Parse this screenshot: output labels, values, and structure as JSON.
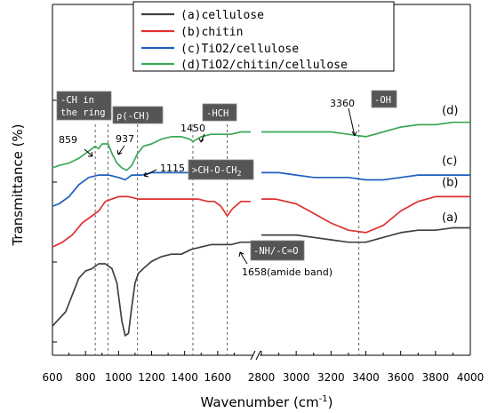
{
  "chart_data": {
    "type": "line",
    "xlabel": "Wavenumber (cm",
    "xlabel_sup": "-1",
    "xlabel_close": ")",
    "ylabel": "Transmittance (%)",
    "x_axis_break": true,
    "x_segments": [
      {
        "xlim": [
          600,
          1800
        ],
        "ticks": [
          600,
          800,
          1000,
          1200,
          1400,
          1600
        ]
      },
      {
        "xlim": [
          2800,
          4000
        ],
        "ticks": [
          2800,
          3000,
          3200,
          3400,
          3600,
          3800,
          4000
        ]
      }
    ],
    "legend": [
      {
        "label": "(a)cellulose",
        "color": "#404040"
      },
      {
        "label": "(b)chitin",
        "color": "#e03030"
      },
      {
        "label": "(c)TiO2/cellulose",
        "color": "#1f5fbf"
      },
      {
        "label": "(d)TiO2/chitin/cellulose",
        "color": "#3aa856"
      }
    ],
    "series": [
      {
        "name": "(a)cellulose",
        "color": "#404040",
        "seg1": [
          [
            600,
            0.04
          ],
          [
            640,
            0.07
          ],
          [
            680,
            0.1
          ],
          [
            720,
            0.17
          ],
          [
            760,
            0.24
          ],
          [
            800,
            0.27
          ],
          [
            840,
            0.28
          ],
          [
            880,
            0.3
          ],
          [
            920,
            0.3
          ],
          [
            960,
            0.28
          ],
          [
            990,
            0.22
          ],
          [
            1020,
            0.06
          ],
          [
            1040,
            0.0
          ],
          [
            1060,
            0.01
          ],
          [
            1080,
            0.12
          ],
          [
            1100,
            0.22
          ],
          [
            1120,
            0.26
          ],
          [
            1150,
            0.28
          ],
          [
            1200,
            0.31
          ],
          [
            1260,
            0.33
          ],
          [
            1320,
            0.34
          ],
          [
            1380,
            0.34
          ],
          [
            1440,
            0.36
          ],
          [
            1500,
            0.37
          ],
          [
            1560,
            0.38
          ],
          [
            1620,
            0.38
          ],
          [
            1680,
            0.38
          ],
          [
            1740,
            0.39
          ],
          [
            1800,
            0.39
          ]
        ],
        "seg2": [
          [
            2800,
            0.42
          ],
          [
            2900,
            0.42
          ],
          [
            3000,
            0.42
          ],
          [
            3100,
            0.41
          ],
          [
            3200,
            0.4
          ],
          [
            3300,
            0.39
          ],
          [
            3400,
            0.39
          ],
          [
            3500,
            0.41
          ],
          [
            3600,
            0.43
          ],
          [
            3700,
            0.44
          ],
          [
            3800,
            0.44
          ],
          [
            3900,
            0.45
          ],
          [
            4000,
            0.45
          ]
        ]
      },
      {
        "name": "(b)chitin",
        "color": "#e03030",
        "seg1": [
          [
            600,
            0.37
          ],
          [
            660,
            0.39
          ],
          [
            720,
            0.42
          ],
          [
            780,
            0.47
          ],
          [
            840,
            0.5
          ],
          [
            880,
            0.52
          ],
          [
            920,
            0.56
          ],
          [
            960,
            0.57
          ],
          [
            1000,
            0.58
          ],
          [
            1060,
            0.58
          ],
          [
            1120,
            0.57
          ],
          [
            1180,
            0.57
          ],
          [
            1240,
            0.57
          ],
          [
            1300,
            0.57
          ],
          [
            1360,
            0.57
          ],
          [
            1420,
            0.57
          ],
          [
            1480,
            0.57
          ],
          [
            1540,
            0.56
          ],
          [
            1580,
            0.56
          ],
          [
            1620,
            0.54
          ],
          [
            1658,
            0.5
          ],
          [
            1690,
            0.53
          ],
          [
            1740,
            0.56
          ],
          [
            1800,
            0.56
          ]
        ],
        "seg2": [
          [
            2800,
            0.57
          ],
          [
            2880,
            0.57
          ],
          [
            3000,
            0.55
          ],
          [
            3100,
            0.51
          ],
          [
            3200,
            0.47
          ],
          [
            3300,
            0.44
          ],
          [
            3400,
            0.43
          ],
          [
            3500,
            0.46
          ],
          [
            3600,
            0.52
          ],
          [
            3700,
            0.56
          ],
          [
            3800,
            0.58
          ],
          [
            3900,
            0.58
          ],
          [
            4000,
            0.58
          ]
        ]
      },
      {
        "name": "(c)TiO2/cellulose",
        "color": "#1f5fbf",
        "seg1": [
          [
            600,
            0.54
          ],
          [
            640,
            0.55
          ],
          [
            700,
            0.58
          ],
          [
            760,
            0.63
          ],
          [
            820,
            0.66
          ],
          [
            880,
            0.67
          ],
          [
            940,
            0.67
          ],
          [
            1000,
            0.66
          ],
          [
            1040,
            0.65
          ],
          [
            1080,
            0.67
          ],
          [
            1140,
            0.67
          ],
          [
            1200,
            0.68
          ],
          [
            1260,
            0.68
          ],
          [
            1320,
            0.68
          ],
          [
            1380,
            0.68
          ],
          [
            1440,
            0.68
          ],
          [
            1500,
            0.68
          ],
          [
            1560,
            0.68
          ],
          [
            1620,
            0.68
          ],
          [
            1680,
            0.68
          ],
          [
            1740,
            0.68
          ],
          [
            1800,
            0.68
          ]
        ],
        "seg2": [
          [
            2800,
            0.68
          ],
          [
            2900,
            0.68
          ],
          [
            3000,
            0.67
          ],
          [
            3100,
            0.66
          ],
          [
            3200,
            0.66
          ],
          [
            3300,
            0.66
          ],
          [
            3400,
            0.65
          ],
          [
            3500,
            0.65
          ],
          [
            3600,
            0.66
          ],
          [
            3700,
            0.67
          ],
          [
            3800,
            0.67
          ],
          [
            3900,
            0.67
          ],
          [
            4000,
            0.67
          ]
        ]
      },
      {
        "name": "(d)TiO2/chitin/cellulose",
        "color": "#3aa856",
        "seg1": [
          [
            600,
            0.7
          ],
          [
            640,
            0.71
          ],
          [
            700,
            0.72
          ],
          [
            760,
            0.74
          ],
          [
            820,
            0.77
          ],
          [
            859,
            0.79
          ],
          [
            880,
            0.78
          ],
          [
            900,
            0.8
          ],
          [
            937,
            0.8
          ],
          [
            960,
            0.76
          ],
          [
            990,
            0.72
          ],
          [
            1020,
            0.7
          ],
          [
            1050,
            0.69
          ],
          [
            1080,
            0.71
          ],
          [
            1115,
            0.76
          ],
          [
            1150,
            0.79
          ],
          [
            1200,
            0.8
          ],
          [
            1260,
            0.82
          ],
          [
            1320,
            0.83
          ],
          [
            1380,
            0.83
          ],
          [
            1430,
            0.82
          ],
          [
            1450,
            0.81
          ],
          [
            1500,
            0.83
          ],
          [
            1560,
            0.84
          ],
          [
            1620,
            0.84
          ],
          [
            1680,
            0.84
          ],
          [
            1740,
            0.85
          ],
          [
            1800,
            0.85
          ]
        ],
        "seg2": [
          [
            2800,
            0.85
          ],
          [
            2900,
            0.85
          ],
          [
            3000,
            0.85
          ],
          [
            3100,
            0.85
          ],
          [
            3200,
            0.85
          ],
          [
            3300,
            0.84
          ],
          [
            3400,
            0.83
          ],
          [
            3500,
            0.85
          ],
          [
            3600,
            0.87
          ],
          [
            3700,
            0.88
          ],
          [
            3800,
            0.88
          ],
          [
            3900,
            0.89
          ],
          [
            4000,
            0.89
          ]
        ]
      }
    ],
    "curve_labels": [
      {
        "text": "(a)",
        "series": 0
      },
      {
        "text": "(b)",
        "series": 1
      },
      {
        "text": "(c)",
        "series": 2
      },
      {
        "text": "(d)",
        "series": 3
      }
    ],
    "reference_lines": [
      859,
      937,
      1115,
      1450,
      1658,
      3360
    ],
    "annotations": {
      "w859": "859",
      "w937": "937",
      "w1115": "1115",
      "w1450": "1450",
      "w3360": "3360",
      "w1658": "1658(amide band)",
      "tag_ch_ring_1": "-CH in",
      "tag_ch_ring_2": "the ring",
      "tag_rho": "ρ(-CH)",
      "tag_hch": "-HCH",
      "tag_choch": ">CH-O-CH",
      "tag_choch_sub": "2",
      "tag_nh": "-NH/-C=O",
      "tag_oh": "-OH"
    }
  }
}
